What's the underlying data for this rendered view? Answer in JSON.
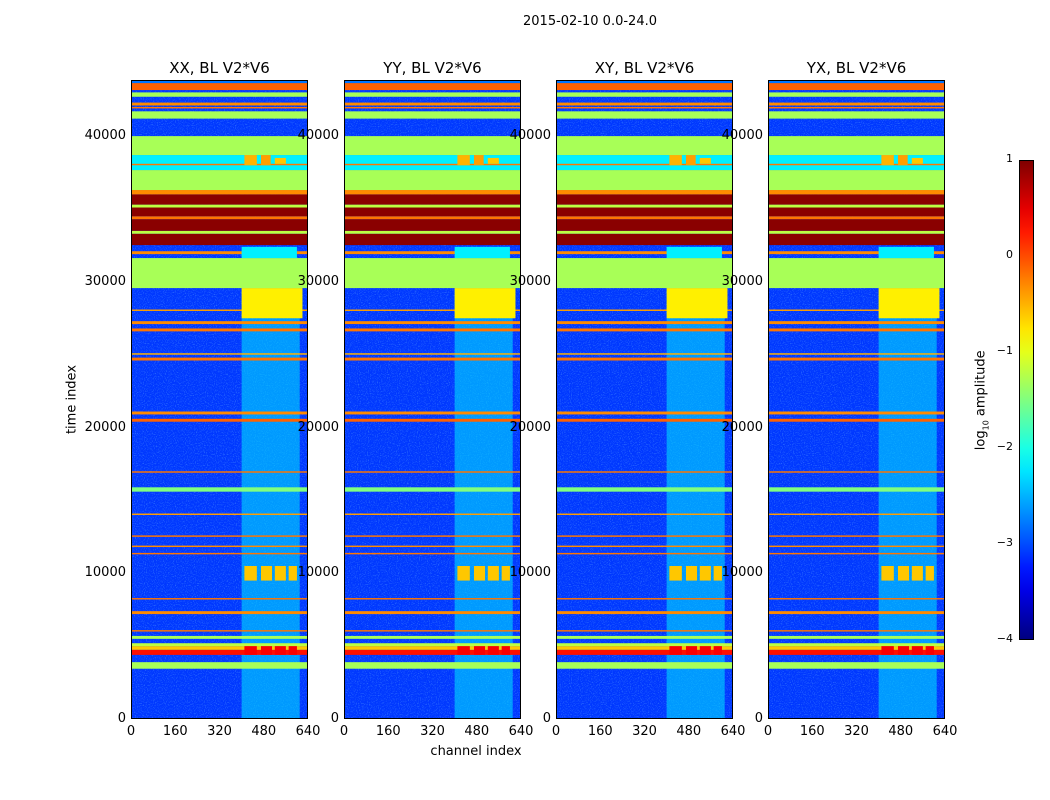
{
  "chart_data": {
    "type": "heatmap",
    "title": "2015-02-10 0.0-24.0",
    "panels": [
      {
        "title": "XX, BL V2*V6"
      },
      {
        "title": "YY, BL V2*V6"
      },
      {
        "title": "XY, BL V2*V6"
      },
      {
        "title": "YX, BL V2*V6"
      }
    ],
    "xlabel": "channel index",
    "ylabel": "time index",
    "xlim": [
      0,
      640
    ],
    "ylim": [
      0,
      43850
    ],
    "xticks": [
      "0",
      "160",
      "320",
      "480",
      "640"
    ],
    "xtick_values": [
      0,
      160,
      320,
      480,
      640
    ],
    "yticks": [
      "0",
      "10000",
      "20000",
      "30000",
      "40000"
    ],
    "ytick_values": [
      0,
      10000,
      20000,
      30000,
      40000
    ],
    "colorbar": {
      "label_prefix": "log",
      "label_sub": "10",
      "label_suffix": " amplitude",
      "range": [
        -4,
        1
      ],
      "ticks": [
        "1",
        "0",
        "−1",
        "−2",
        "−3",
        "−4"
      ],
      "tick_values": [
        1,
        0,
        -1,
        -2,
        -3,
        -4
      ],
      "colormap": "jet"
    },
    "background_value": -3.1,
    "time_bands": [
      [
        3450,
        3900,
        -1.3
      ],
      [
        4400,
        4750,
        0.3
      ],
      [
        4750,
        5000,
        -0.6
      ],
      [
        5000,
        5200,
        -1.2
      ],
      [
        5500,
        5700,
        -1.3
      ],
      [
        6000,
        6100,
        -0.2
      ],
      [
        7200,
        7400,
        -0.3
      ],
      [
        8200,
        8300,
        -0.2
      ],
      [
        11300,
        11400,
        -0.2
      ],
      [
        11800,
        11900,
        -0.3
      ],
      [
        12500,
        12600,
        -0.2
      ],
      [
        14000,
        14100,
        -0.4
      ],
      [
        15600,
        15900,
        -1.5
      ],
      [
        16900,
        17000,
        -0.2
      ],
      [
        20400,
        20600,
        -0.1
      ],
      [
        20900,
        21100,
        -0.3
      ],
      [
        24600,
        24800,
        -0.2
      ],
      [
        25000,
        25100,
        -0.5
      ],
      [
        26600,
        26800,
        -0.2
      ],
      [
        27100,
        27300,
        -0.3
      ],
      [
        28000,
        28100,
        -0.4
      ],
      [
        29570,
        31630,
        -1.3
      ],
      [
        31900,
        32100,
        -0.3
      ],
      [
        32520,
        33300,
        0.95
      ],
      [
        33300,
        33500,
        -1.2
      ],
      [
        33500,
        34300,
        0.95
      ],
      [
        34300,
        34500,
        -0.2
      ],
      [
        34500,
        35100,
        0.95
      ],
      [
        35100,
        35300,
        -1.2
      ],
      [
        35300,
        36000,
        0.95
      ],
      [
        36000,
        36300,
        -0.3
      ],
      [
        36300,
        37670,
        -1.3
      ],
      [
        37670,
        38700,
        -2.2
      ],
      [
        38000,
        38100,
        -0.2
      ],
      [
        38700,
        40000,
        -1.3
      ],
      [
        41200,
        41700,
        -1.3
      ],
      [
        41900,
        42000,
        -0.2
      ],
      [
        42100,
        42300,
        -0.3
      ],
      [
        42700,
        43000,
        -1.3
      ],
      [
        43160,
        43640,
        -0.1
      ],
      [
        43640,
        43850,
        -2.8
      ]
    ],
    "channel_bands": [
      [
        400,
        610,
        0,
        29570,
        -2.3
      ],
      [
        400,
        620,
        27500,
        29570,
        -0.8
      ],
      [
        410,
        455,
        9500,
        10500,
        -0.6
      ],
      [
        470,
        510,
        9500,
        10500,
        -0.6
      ],
      [
        520,
        560,
        9500,
        10500,
        -0.6
      ],
      [
        570,
        600,
        9500,
        10500,
        -0.6
      ],
      [
        410,
        455,
        4400,
        5000,
        0.4
      ],
      [
        470,
        510,
        4400,
        5000,
        0.4
      ],
      [
        520,
        560,
        4400,
        5000,
        0.4
      ],
      [
        570,
        600,
        4400,
        5000,
        0.4
      ],
      [
        410,
        455,
        38000,
        38700,
        -0.5
      ],
      [
        470,
        505,
        38000,
        38700,
        -0.4
      ],
      [
        520,
        560,
        38100,
        38500,
        -0.6
      ],
      [
        400,
        600,
        31630,
        32400,
        -2.2
      ]
    ]
  }
}
